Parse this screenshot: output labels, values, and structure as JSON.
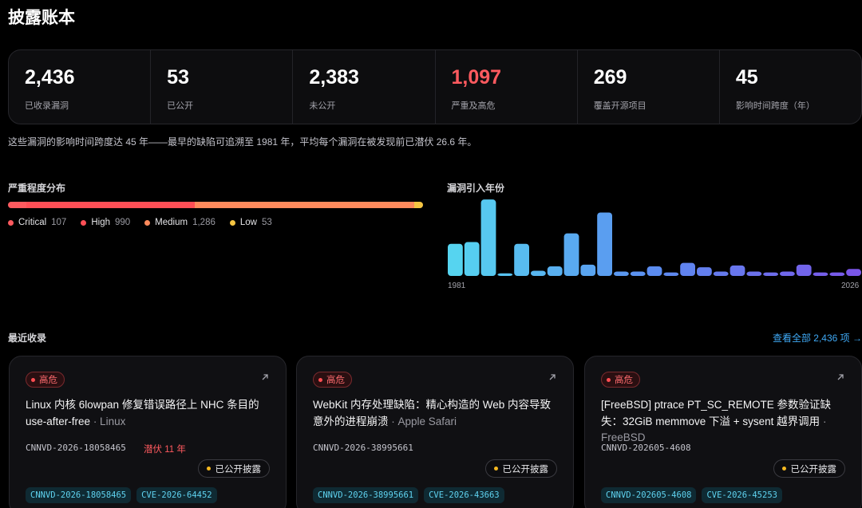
{
  "title": "披露账本",
  "stats": [
    {
      "value": "2,436",
      "label": "已收录漏洞",
      "highlight": false
    },
    {
      "value": "53",
      "label": "已公开",
      "highlight": false
    },
    {
      "value": "2,383",
      "label": "未公开",
      "highlight": false
    },
    {
      "value": "1,097",
      "label": "严重及高危",
      "highlight": true
    },
    {
      "value": "269",
      "label": "覆盖开源项目",
      "highlight": false
    },
    {
      "value": "45",
      "label": "影响时间跨度（年）",
      "highlight": false
    }
  ],
  "summary": "这些漏洞的影响时间跨度达 45 年——最早的缺陷可追溯至 1981 年，平均每个漏洞在被发现前已潜伏 26.6 年。",
  "severity": {
    "title": "严重程度分布",
    "items": [
      {
        "name": "Critical",
        "count": "107",
        "value": 107,
        "color": "#ff5a5f"
      },
      {
        "name": "High",
        "count": "990",
        "value": 990,
        "color": "#ff4f56"
      },
      {
        "name": "Medium",
        "count": "1,286",
        "value": 1286,
        "color": "#ff8a5c"
      },
      {
        "name": "Low",
        "count": "53",
        "value": 53,
        "color": "#f5c542"
      }
    ]
  },
  "chart_data": {
    "type": "bar",
    "title": "漏洞引入年份",
    "x_start_label": "1981",
    "x_end_label": "2026",
    "values": [
      37,
      39,
      88,
      3,
      37,
      6,
      11,
      49,
      13,
      73,
      5,
      5,
      11,
      4,
      15,
      10,
      5,
      12,
      5,
      4,
      5,
      13,
      4,
      4,
      8
    ],
    "ylim": [
      0,
      90
    ]
  },
  "recent": {
    "title": "最近收录",
    "view_all": "查看全部 2,436 项 →"
  },
  "cards": [
    {
      "severity": "高危",
      "title": "Linux 内核 6lowpan 修复错误路径上 NHC 条目的 use-after-free",
      "vendor": "· Linux",
      "id": "CNNVD-2026-18058465",
      "age": "潜伏 11 年",
      "status": "已公开披露",
      "tags": [
        "CNNVD-2026-18058465",
        "CVE-2026-64452"
      ]
    },
    {
      "severity": "高危",
      "title": "WebKit 内存处理缺陷：精心构造的 Web 内容导致意外的进程崩溃",
      "vendor": "· Apple Safari",
      "id": "CNNVD-2026-38995661",
      "age": "",
      "status": "已公开披露",
      "tags": [
        "CNNVD-2026-38995661",
        "CVE-2026-43663"
      ]
    },
    {
      "severity": "高危",
      "title": "[FreeBSD] ptrace PT_SC_REMOTE 参数验证缺失：32GiB memmove 下溢 + sysent 越界调用",
      "vendor": "· FreeBSD",
      "id": "CNNVD-202605-4608",
      "age": "",
      "status": "已公开披露",
      "tags": [
        "CNNVD-202605-4608",
        "CVE-2026-45253"
      ]
    }
  ]
}
